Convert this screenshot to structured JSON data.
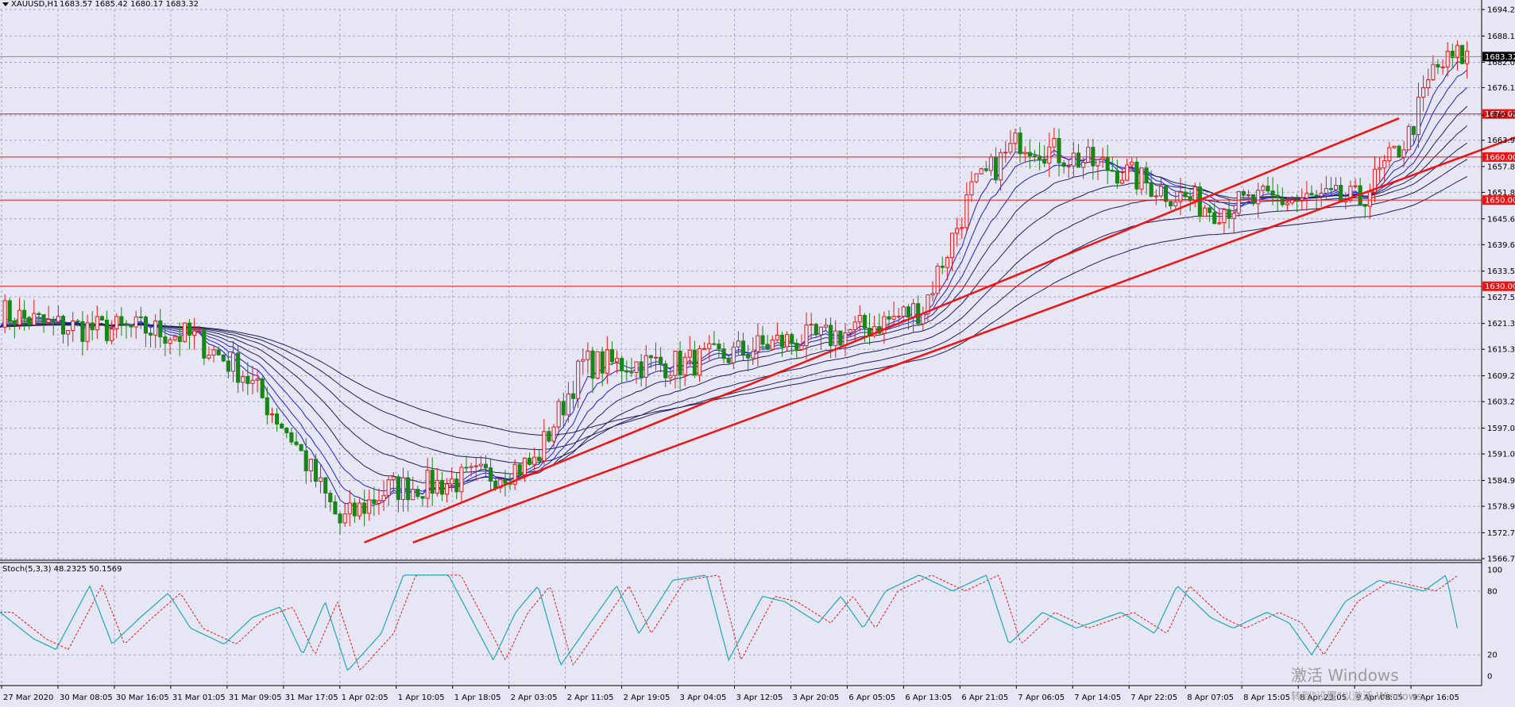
{
  "header": {
    "symbol_text": "XAUUSD,H1",
    "ohlc_text": "1683.57 1685.42 1680.17 1683.32"
  },
  "oscillator": {
    "label": "Stoch(5,3,3) 48.2325 50.1569",
    "levels": [
      "100",
      "80",
      "20",
      "0"
    ]
  },
  "watermark": {
    "line1": "激活 Windows",
    "line2": "转到\"设置\"以激活 Windows。"
  },
  "chart_data": {
    "type": "candlestick",
    "symbol": "XAUUSD",
    "timeframe": "H1",
    "ylim": [
      1566.75,
      1694.25
    ],
    "price_ticks": [
      "1694.25",
      "1688.10",
      "1682.00",
      "1676.10",
      "1669.70",
      "1663.90",
      "1657.80",
      "1651.80",
      "1645.65",
      "1639.65",
      "1633.50",
      "1627.50",
      "1621.35",
      "1615.35",
      "1609.20",
      "1603.20",
      "1597.05",
      "1591.05",
      "1584.90",
      "1578.90",
      "1572.75",
      "1566.75"
    ],
    "time_labels": [
      "27 Mar 2020",
      "30 Mar 08:05",
      "30 Mar 16:05",
      "31 Mar 01:05",
      "31 Mar 09:05",
      "31 Mar 17:05",
      "1 Apr 02:05",
      "1 Apr 10:05",
      "1 Apr 18:05",
      "2 Apr 03:05",
      "2 Apr 11:05",
      "2 Apr 19:05",
      "3 Apr 04:05",
      "3 Apr 12:05",
      "3 Apr 20:05",
      "6 Apr 05:05",
      "6 Apr 13:05",
      "6 Apr 21:05",
      "7 Apr 06:05",
      "7 Apr 14:05",
      "7 Apr 22:05",
      "8 Apr 07:05",
      "8 Apr 15:05",
      "8 Apr 23:05",
      "9 Apr 08:05",
      "9 Apr 16:05"
    ],
    "current_price": "1683.32",
    "horizontal_levels": [
      {
        "value": 1670.0,
        "label": "1670.00"
      },
      {
        "value": 1660.0,
        "label": "1660.00"
      },
      {
        "value": 1650.0,
        "label": "1650.00"
      },
      {
        "value": 1630.0,
        "label": "1630.00"
      }
    ],
    "trendlines": [
      {
        "from": {
          "bar": 7.5,
          "price": 1570.5
        },
        "to": {
          "bar": 28.8,
          "price": 1669.0
        }
      },
      {
        "from": {
          "bar": 8.5,
          "price": 1570.5
        },
        "to": {
          "bar": 31.3,
          "price": 1665.0
        }
      }
    ],
    "price_path": [
      [
        0,
        1624
      ],
      [
        1,
        1621
      ],
      [
        2,
        1620
      ],
      [
        3,
        1620
      ],
      [
        4,
        1618
      ],
      [
        5,
        1610
      ],
      [
        6,
        1595
      ],
      [
        7,
        1575
      ],
      [
        8,
        1583
      ],
      [
        9,
        1584
      ],
      [
        10,
        1586
      ],
      [
        11,
        1589
      ],
      [
        12,
        1612
      ],
      [
        13,
        1612
      ],
      [
        14,
        1612
      ],
      [
        15,
        1614
      ],
      [
        16,
        1617
      ],
      [
        17,
        1618
      ],
      [
        18,
        1621
      ],
      [
        19,
        1625
      ],
      [
        20,
        1652
      ],
      [
        21,
        1664
      ],
      [
        22,
        1660
      ],
      [
        23,
        1657
      ],
      [
        24,
        1652
      ],
      [
        25,
        1648
      ],
      [
        26,
        1650
      ],
      [
        27,
        1650
      ],
      [
        28,
        1650
      ],
      [
        29,
        1665
      ],
      [
        29.5,
        1680
      ],
      [
        30,
        1683.3
      ]
    ],
    "stochastic": {
      "period": "5,3,3",
      "main_value": 48.2325,
      "signal_value": 50.1569,
      "levels": [
        100,
        80,
        20,
        0
      ],
      "main_path": [
        [
          0,
          60
        ],
        [
          0.6,
          35
        ],
        [
          1.0,
          25
        ],
        [
          1.6,
          85
        ],
        [
          2.0,
          30
        ],
        [
          2.5,
          55
        ],
        [
          3.0,
          78
        ],
        [
          3.4,
          45
        ],
        [
          4.0,
          30
        ],
        [
          4.5,
          55
        ],
        [
          5.0,
          65
        ],
        [
          5.4,
          20
        ],
        [
          5.8,
          70
        ],
        [
          6.2,
          5
        ],
        [
          6.8,
          40
        ],
        [
          7.2,
          95
        ],
        [
          8.0,
          95
        ],
        [
          8.8,
          15
        ],
        [
          9.2,
          60
        ],
        [
          9.6,
          85
        ],
        [
          10.0,
          10
        ],
        [
          10.6,
          55
        ],
        [
          11.0,
          85
        ],
        [
          11.4,
          40
        ],
        [
          12.0,
          90
        ],
        [
          12.6,
          95
        ],
        [
          13.0,
          15
        ],
        [
          13.6,
          75
        ],
        [
          14.0,
          70
        ],
        [
          14.6,
          50
        ],
        [
          15.0,
          75
        ],
        [
          15.4,
          45
        ],
        [
          15.8,
          80
        ],
        [
          16.4,
          95
        ],
        [
          17.0,
          80
        ],
        [
          17.6,
          95
        ],
        [
          18.0,
          30
        ],
        [
          18.6,
          60
        ],
        [
          19.2,
          45
        ],
        [
          20.0,
          60
        ],
        [
          20.6,
          40
        ],
        [
          21.0,
          85
        ],
        [
          21.6,
          55
        ],
        [
          22.0,
          45
        ],
        [
          22.6,
          60
        ],
        [
          23.0,
          50
        ],
        [
          23.4,
          20
        ],
        [
          24.0,
          70
        ],
        [
          24.6,
          90
        ],
        [
          25.4,
          80
        ],
        [
          25.8,
          95
        ],
        [
          26.0,
          45
        ]
      ]
    }
  }
}
